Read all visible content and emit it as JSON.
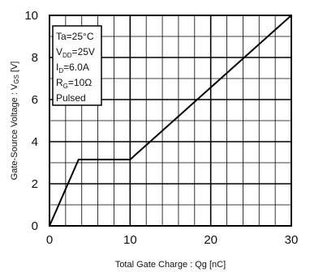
{
  "chart_data": {
    "type": "line",
    "xlabel": "Total Gate Charge : Qg  [nC]",
    "ylabel_main": "Gate-Source Voltage : V",
    "ylabel_sub": "GS",
    "ylabel_unit": " [V]",
    "xlim": [
      0,
      30
    ],
    "ylim": [
      0,
      10
    ],
    "x_ticks": [
      "0",
      "10",
      "20",
      "30"
    ],
    "y_ticks": [
      "0",
      "2",
      "4",
      "6",
      "8",
      "10"
    ],
    "grid": true,
    "series": [
      {
        "x": [
          0,
          3.6,
          10,
          30
        ],
        "y": [
          0,
          3.15,
          3.15,
          10
        ]
      }
    ],
    "annotation": {
      "lines": [
        {
          "main": "Ta=25°C",
          "sub": "",
          "rest": ""
        },
        {
          "main": "V",
          "sub": "DD",
          "rest": "=25V"
        },
        {
          "main": "I",
          "sub": "D",
          "rest": "=6.0A"
        },
        {
          "main": "R",
          "sub": "G",
          "rest": "=10Ω"
        },
        {
          "main": "Pulsed",
          "sub": "",
          "rest": ""
        }
      ]
    }
  }
}
